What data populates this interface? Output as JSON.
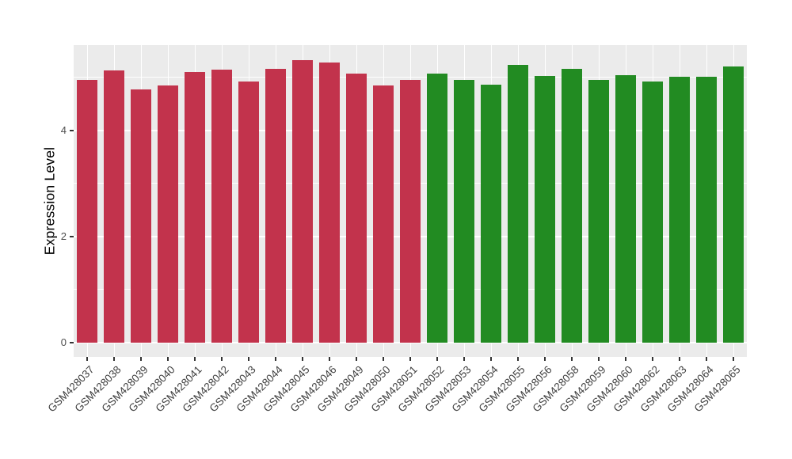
{
  "chart_data": {
    "type": "bar",
    "title": "",
    "xlabel": "",
    "ylabel": "Expression Level",
    "categories": [
      "GSM428037",
      "GSM428038",
      "GSM428039",
      "GSM428040",
      "GSM428041",
      "GSM428042",
      "GSM428043",
      "GSM428044",
      "GSM428045",
      "GSM428046",
      "GSM428049",
      "GSM428050",
      "GSM428051",
      "GSM428052",
      "GSM428053",
      "GSM428054",
      "GSM428055",
      "GSM428056",
      "GSM428058",
      "GSM428059",
      "GSM428060",
      "GSM428062",
      "GSM428063",
      "GSM428064",
      "GSM428065"
    ],
    "values": [
      4.96,
      5.13,
      4.78,
      4.85,
      5.1,
      5.14,
      4.93,
      5.16,
      5.33,
      5.28,
      5.08,
      4.85,
      4.96,
      5.08,
      4.96,
      4.86,
      5.24,
      5.03,
      5.16,
      4.95,
      5.04,
      4.93,
      5.01,
      5.01,
      5.2
    ],
    "groups": [
      "red",
      "red",
      "red",
      "red",
      "red",
      "red",
      "red",
      "red",
      "red",
      "red",
      "red",
      "red",
      "red",
      "green",
      "green",
      "green",
      "green",
      "green",
      "green",
      "green",
      "green",
      "green",
      "green",
      "green",
      "green"
    ],
    "group_colors": {
      "red": "#C2334C",
      "green": "#228B22"
    },
    "y_ticks": [
      0,
      2,
      4
    ],
    "y_minor_ticks": [
      1,
      3,
      5
    ],
    "ylim": [
      -0.27,
      5.61
    ],
    "grid": true,
    "legend": "none",
    "panel_bg": "#EBEBEB",
    "grid_major_color": "#FFFFFF",
    "grid_minor_color": "#FFFFFF"
  }
}
